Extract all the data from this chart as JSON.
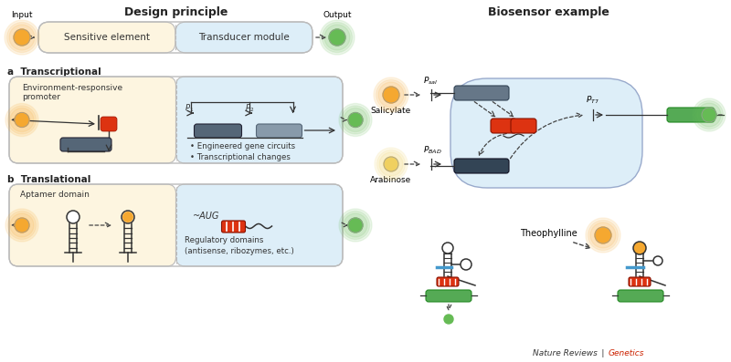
{
  "title_left": "Design principle",
  "title_right": "Biosensor example",
  "bg_color": "#ffffff",
  "cream_color": "#fdf5e0",
  "blue_color": "#ddeef8",
  "border_color": "#bbbbbb",
  "gene_box_color": "#556677",
  "gene2_box_color": "#889aaa",
  "orange_circle_color": "#f5a830",
  "yellow_circle_color": "#f0d060",
  "green_circle_color": "#66bb55",
  "red_element_color": "#dd3311",
  "section_a_label": "a  Transcriptional",
  "section_b_label": "b  Translational",
  "input_label": "Input",
  "output_label": "Output",
  "sensitive_label": "Sensitive element",
  "transducer_label": "Transducer module",
  "env_responsive_label": "Environment-responsive\npromoter",
  "engineered_label": "• Engineered gene circuits\n• Transcriptional changes",
  "aptamer_label": "Aptamer domain",
  "regulatory_label": "Regulatory domains\n(antisense, ribozymes, etc.)",
  "salicylate_label": "Salicylate",
  "arabinose_label": "Arabinose",
  "theophylline_label": "Theophylline",
  "nature_reviews": "Nature Reviews | ",
  "genetics_label": "Genetics"
}
